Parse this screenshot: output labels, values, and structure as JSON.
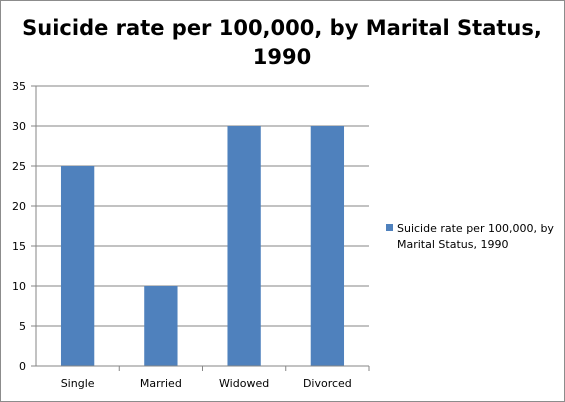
{
  "chart_data": {
    "type": "bar",
    "title_lines": [
      "Suicide rate per 100,000, by Marital Status,",
      "1990"
    ],
    "categories": [
      "Single",
      "Married",
      "Widowed",
      "Divorced"
    ],
    "series": [
      {
        "name_lines": [
          "Suicide rate per 100,000, by",
          "Marital Status,  1990"
        ],
        "values": [
          25,
          10,
          30,
          30
        ],
        "color": "#4F81BD"
      }
    ],
    "ylim": [
      0,
      35
    ],
    "yticks": [
      "0",
      "5",
      "10",
      "15",
      "20",
      "25",
      "30",
      "35"
    ],
    "grid": true,
    "legend_position": "right"
  }
}
